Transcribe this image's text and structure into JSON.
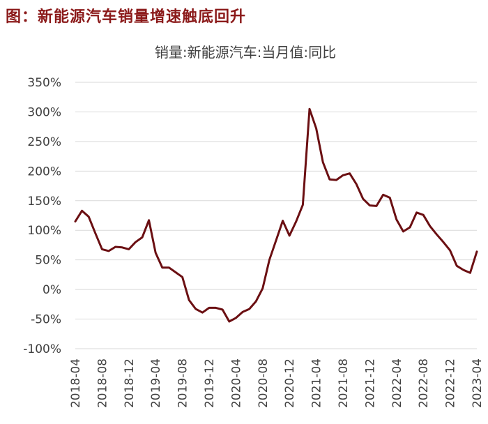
{
  "figure": {
    "label": "图：新能源汽车销量增速触底回升"
  },
  "chart_data": {
    "type": "line",
    "title": "销量:新能源汽车:当月值:同比",
    "xlabel": "",
    "ylabel": "",
    "ylim": [
      -100,
      350
    ],
    "y_ticks": [
      -100,
      -50,
      0,
      50,
      100,
      150,
      200,
      250,
      300,
      350
    ],
    "y_tick_labels": [
      "-100%",
      "-50%",
      "0%",
      "50%",
      "100%",
      "150%",
      "200%",
      "250%",
      "300%",
      "350%"
    ],
    "x_tick_labels": [
      "2018-04",
      "2018-08",
      "2018-12",
      "2019-04",
      "2019-08",
      "2019-12",
      "2020-04",
      "2020-08",
      "2020-12",
      "2021-04",
      "2021-08",
      "2021-12",
      "2022-04",
      "2022-08",
      "2022-12",
      "2023-04"
    ],
    "grid": true,
    "legend": "none",
    "categories": [
      "2018-04",
      "2018-05",
      "2018-06",
      "2018-07",
      "2018-08",
      "2018-09",
      "2018-10",
      "2018-11",
      "2018-12",
      "2019-01",
      "2019-02",
      "2019-03",
      "2019-04",
      "2019-05",
      "2019-06",
      "2019-07",
      "2019-08",
      "2019-09",
      "2019-10",
      "2019-11",
      "2019-12",
      "2020-01",
      "2020-02",
      "2020-03",
      "2020-04",
      "2020-05",
      "2020-06",
      "2020-07",
      "2020-08",
      "2020-09",
      "2020-10",
      "2020-11",
      "2020-12",
      "2021-01",
      "2021-02",
      "2021-03",
      "2021-04",
      "2021-05",
      "2021-06",
      "2021-07",
      "2021-08",
      "2021-09",
      "2021-10",
      "2021-11",
      "2021-12",
      "2022-01",
      "2022-02",
      "2022-03",
      "2022-04",
      "2022-05",
      "2022-06",
      "2022-07",
      "2022-08",
      "2022-09",
      "2022-10",
      "2022-11",
      "2022-12",
      "2023-01",
      "2023-02",
      "2023-03",
      "2023-04"
    ],
    "series": [
      {
        "color": "#6b0f12",
        "values": [
          115,
          133,
          123,
          95,
          68,
          65,
          72,
          71,
          68,
          80,
          88,
          117,
          62,
          37,
          37,
          29,
          21,
          -18,
          -33,
          -39,
          -31,
          -31,
          -34,
          -54,
          -48,
          -38,
          -33,
          -20,
          2,
          50,
          83,
          116,
          91,
          115,
          143,
          305,
          272,
          215,
          186,
          185,
          193,
          196,
          178,
          153,
          142,
          141,
          160,
          155,
          118,
          98,
          105,
          130,
          126,
          107,
          93,
          80,
          66,
          40,
          33,
          28,
          64
        ]
      }
    ]
  }
}
